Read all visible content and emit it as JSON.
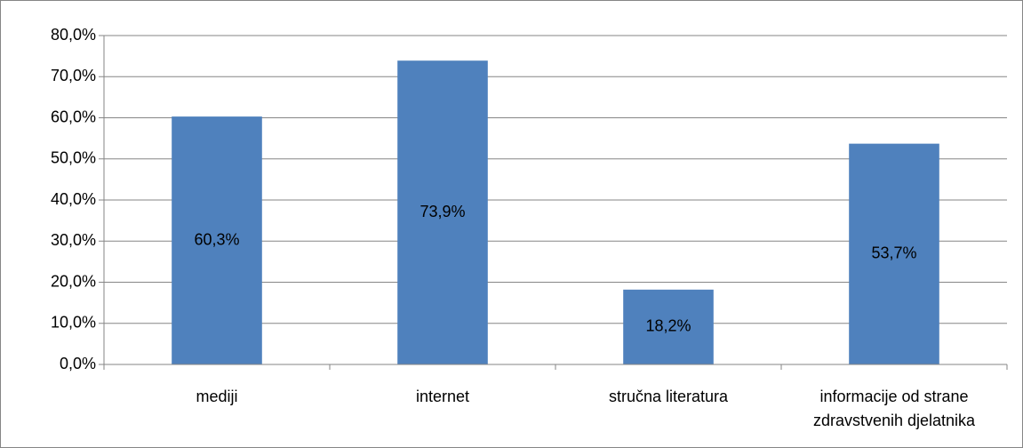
{
  "chart_data": {
    "type": "bar",
    "categories": [
      "mediji",
      "internet",
      "stručna literatura",
      "informacije od strane zdravstvenih djelatnika"
    ],
    "values": [
      60.3,
      73.9,
      18.2,
      53.7
    ],
    "value_labels": [
      "60,3%",
      "73,9%",
      "18,2%",
      "53,7%"
    ],
    "color": "#4f81bd",
    "ylim": [
      0,
      80
    ],
    "yticks": [
      {
        "value": 0,
        "label": "0,0%"
      },
      {
        "value": 10,
        "label": "10,0%"
      },
      {
        "value": 20,
        "label": "20,0%"
      },
      {
        "value": 30,
        "label": "30,0%"
      },
      {
        "value": 40,
        "label": "40,0%"
      },
      {
        "value": 50,
        "label": "50,0%"
      },
      {
        "value": 60,
        "label": "60,0%"
      },
      {
        "value": 70,
        "label": "70,0%"
      },
      {
        "value": 80,
        "label": "80,0%"
      }
    ],
    "grid": true
  }
}
